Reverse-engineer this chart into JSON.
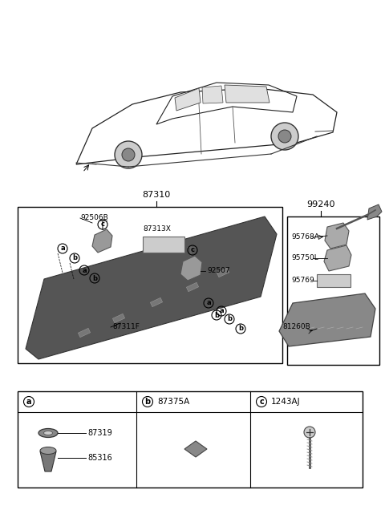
{
  "bg_color": "#ffffff",
  "part_numbers": {
    "main_label": "87310",
    "right_label": "99240",
    "p92506B": "92506B",
    "p87313X": "87313X",
    "p92507": "92507",
    "p87311F": "87311F",
    "p95768A": "95768A",
    "p95750L": "95750L",
    "p95769": "95769",
    "p81260B": "81260B",
    "legend_b_num": "87375A",
    "legend_c_num": "1243AJ",
    "p87319": "87319",
    "p85316": "85316"
  }
}
